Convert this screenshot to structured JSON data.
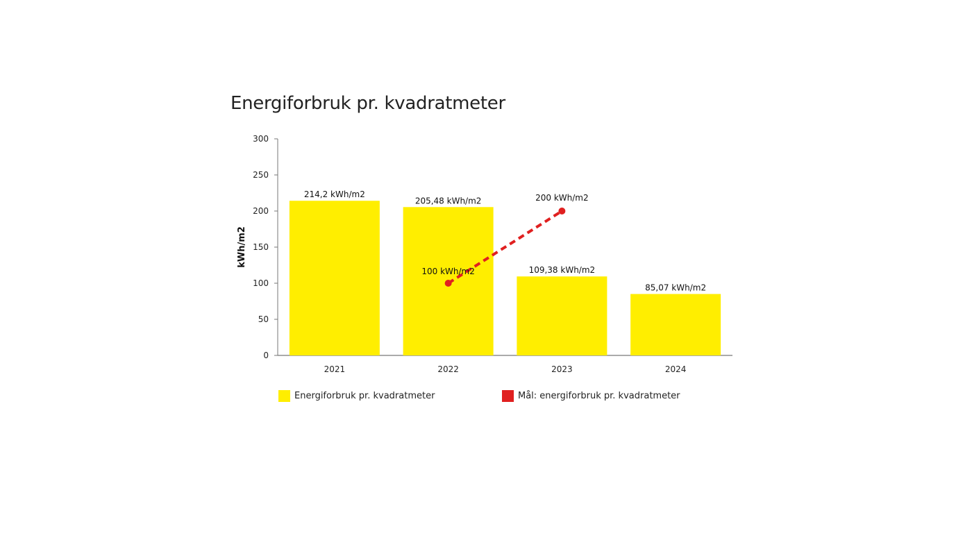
{
  "chart_data": {
    "type": "bar",
    "title": "Energiforbruk pr. kvadratmeter",
    "xlabel": "",
    "ylabel": "kWh/m2",
    "ylim": [
      0,
      300
    ],
    "yticks": [
      0,
      50,
      100,
      150,
      200,
      250,
      300
    ],
    "categories": [
      "2021",
      "2022",
      "2023",
      "2024"
    ],
    "series": [
      {
        "name": "Energiforbruk pr. kvadratmeter",
        "type": "bar",
        "color": "#ffee00",
        "values": [
          214.2,
          205.48,
          109.38,
          85.07
        ],
        "labels": [
          "214,2 kWh/m2",
          "205,48 kWh/m2",
          "109,38 kWh/m2",
          "85,07 kWh/m2"
        ]
      },
      {
        "name": "Mål: energiforbruk pr. kvadratmeter",
        "type": "line",
        "style": "dashed",
        "color": "#e02020",
        "points": [
          {
            "x": "2022",
            "y": 100,
            "label": "100 kWh/m2"
          },
          {
            "x": "2023",
            "y": 200,
            "label": "200 kWh/m2"
          }
        ]
      }
    ],
    "legend_position": "bottom",
    "grid": false
  }
}
